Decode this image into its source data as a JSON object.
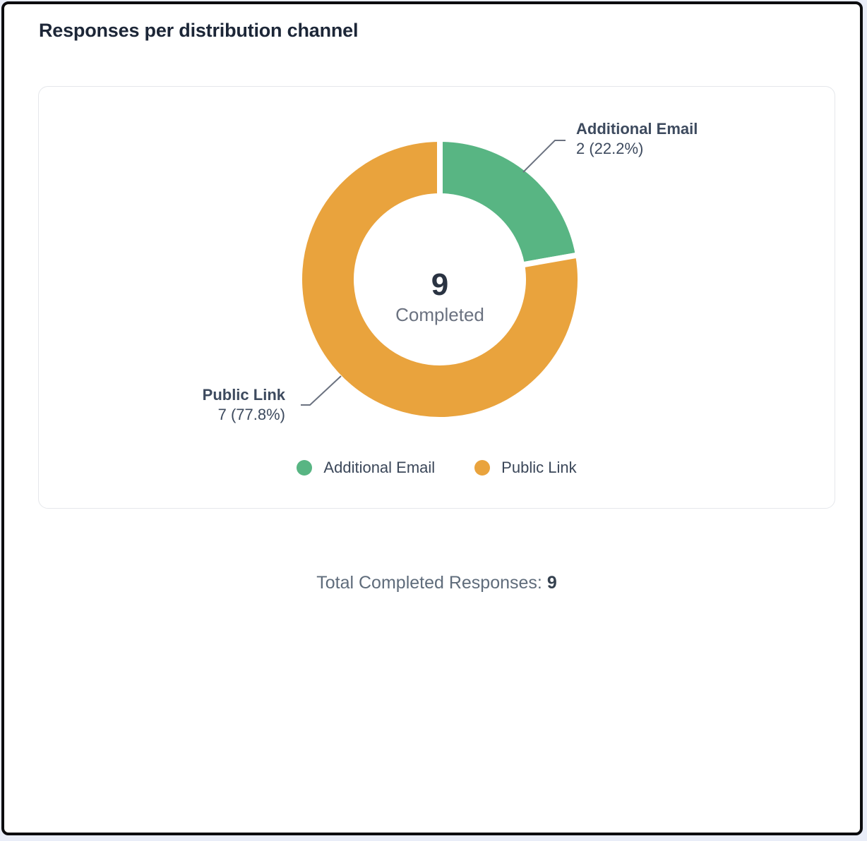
{
  "page": {
    "title": "Responses per distribution channel"
  },
  "chart_data": {
    "type": "pie",
    "subtype": "donut",
    "title": "Responses per distribution channel",
    "categories": [
      "Additional Email",
      "Public Link"
    ],
    "values": [
      2,
      7
    ],
    "labels": [
      "2 (22.2%)",
      "7 (77.8%)"
    ],
    "percentages": [
      22.2,
      77.8
    ],
    "colors": [
      "#58b583",
      "#e9a33d"
    ],
    "total": 9,
    "center_value": "9",
    "center_label": "Completed",
    "legend_position": "bottom",
    "start_angle": "top",
    "direction": "clockwise"
  },
  "summary": {
    "prefix": "Total Completed Responses:",
    "value": "9"
  }
}
